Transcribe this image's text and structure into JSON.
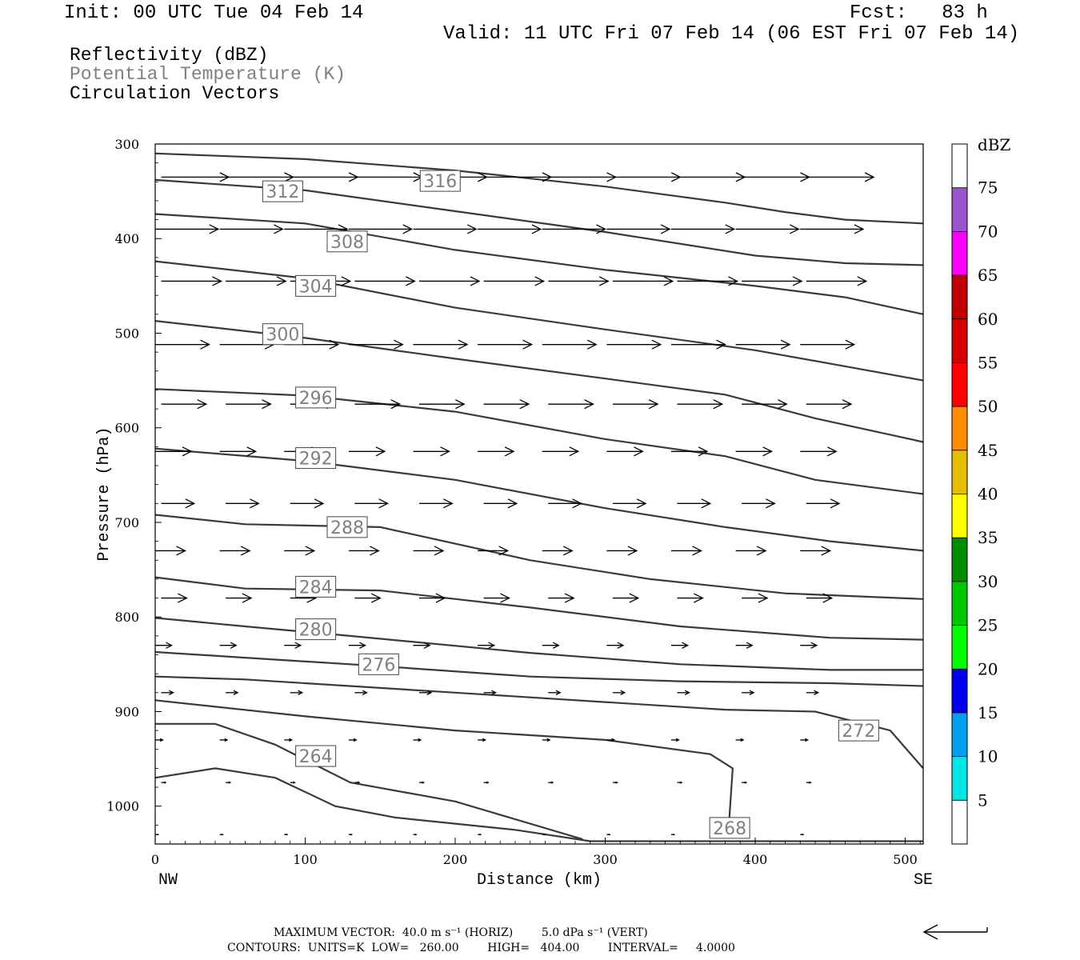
{
  "header": {
    "init": "Init: 00 UTC Tue 04 Feb 14",
    "fcst": "Fcst:   83 h",
    "valid": "Valid: 11 UTC Fri 07 Feb 14 (06 EST Fri 07 Feb 14)"
  },
  "fields": {
    "reflectivity": "Reflectivity (dBZ)",
    "theta": "Potential Temperature (K)",
    "vectors": "Circulation Vectors"
  },
  "footer": {
    "max_vector": "MAXIMUM VECTOR:  40.0 m s⁻¹ (HORIZ)        5.0 dPa s⁻¹ (VERT)",
    "contours": "CONTOURS:  UNITS=K  LOW=   260.00        HIGH=   404.00        INTERVAL=     4.0000"
  },
  "colors": {
    "contour": "#3a3a3a",
    "theta_label_text": "#808080"
  },
  "colorbar": {
    "unit": "dBZ",
    "labels": [
      "5",
      "10",
      "15",
      "20",
      "25",
      "30",
      "35",
      "40",
      "45",
      "50",
      "55",
      "60",
      "65",
      "70",
      "75"
    ],
    "colors": [
      "#00e5e5",
      "#00a0f0",
      "#0000f0",
      "#00ff00",
      "#00c800",
      "#008c00",
      "#ffff00",
      "#e6be00",
      "#ff8c00",
      "#ff0000",
      "#d60000",
      "#c00000",
      "#ff00ff",
      "#9955c9",
      "#ffffff"
    ]
  },
  "chart_data": {
    "type": "cross-section",
    "xlabel": "Distance (km)",
    "ylabel": "Pressure (hPa)",
    "xlim": [
      0,
      512
    ],
    "ylim": [
      300,
      1040
    ],
    "y_scale": "linear, inverted",
    "x_ticks": [
      "0",
      "100",
      "200",
      "300",
      "400",
      "500"
    ],
    "y_ticks": [
      "300",
      "400",
      "500",
      "600",
      "700",
      "800",
      "900",
      "1000"
    ],
    "x_ends": {
      "left": "NW",
      "right": "SE"
    },
    "theta_contours": [
      {
        "value": 316,
        "label_at": [
          190,
          339
        ],
        "points": [
          [
            0,
            310
          ],
          [
            100,
            316
          ],
          [
            200,
            328
          ],
          [
            300,
            345
          ],
          [
            380,
            362
          ],
          [
            420,
            372
          ],
          [
            460,
            380
          ],
          [
            512,
            384
          ]
        ]
      },
      {
        "value": 312,
        "label_at": [
          85,
          350
        ],
        "points": [
          [
            0,
            338
          ],
          [
            100,
            349
          ],
          [
            200,
            371
          ],
          [
            300,
            393
          ],
          [
            400,
            418
          ],
          [
            460,
            426
          ],
          [
            512,
            428
          ]
        ]
      },
      {
        "value": 308,
        "label_at": [
          128,
          403
        ],
        "points": [
          [
            0,
            374
          ],
          [
            100,
            384
          ],
          [
            200,
            412
          ],
          [
            300,
            433
          ],
          [
            400,
            450
          ],
          [
            460,
            462
          ],
          [
            512,
            480
          ]
        ]
      },
      {
        "value": 304,
        "label_at": [
          107,
          450
        ],
        "points": [
          [
            0,
            424
          ],
          [
            100,
            442
          ],
          [
            200,
            473
          ],
          [
            300,
            496
          ],
          [
            400,
            518
          ],
          [
            460,
            535
          ],
          [
            512,
            550
          ]
        ]
      },
      {
        "value": 300,
        "label_at": [
          85,
          501
        ],
        "points": [
          [
            0,
            487
          ],
          [
            100,
            505
          ],
          [
            200,
            527
          ],
          [
            300,
            548
          ],
          [
            380,
            565
          ],
          [
            440,
            590
          ],
          [
            512,
            615
          ]
        ]
      },
      {
        "value": 296,
        "label_at": [
          107,
          568
        ],
        "points": [
          [
            0,
            559
          ],
          [
            100,
            566
          ],
          [
            200,
            583
          ],
          [
            300,
            612
          ],
          [
            380,
            630
          ],
          [
            440,
            655
          ],
          [
            512,
            670
          ]
        ]
      },
      {
        "value": 292,
        "label_at": [
          107,
          632
        ],
        "points": [
          [
            0,
            622
          ],
          [
            100,
            635
          ],
          [
            200,
            655
          ],
          [
            300,
            685
          ],
          [
            380,
            705
          ],
          [
            450,
            720
          ],
          [
            512,
            730
          ]
        ]
      },
      {
        "value": 288,
        "label_at": [
          128,
          705
        ],
        "points": [
          [
            0,
            692
          ],
          [
            60,
            702
          ],
          [
            150,
            705
          ],
          [
            250,
            740
          ],
          [
            330,
            760
          ],
          [
            420,
            775
          ],
          [
            512,
            781
          ]
        ]
      },
      {
        "value": 284,
        "label_at": [
          107,
          768
        ],
        "points": [
          [
            0,
            758
          ],
          [
            60,
            770
          ],
          [
            150,
            772
          ],
          [
            250,
            790
          ],
          [
            350,
            810
          ],
          [
            450,
            822
          ],
          [
            512,
            824
          ]
        ]
      },
      {
        "value": 280,
        "label_at": [
          107,
          813
        ],
        "points": [
          [
            0,
            801
          ],
          [
            60,
            810
          ],
          [
            130,
            820
          ],
          [
            250,
            838
          ],
          [
            350,
            850
          ],
          [
            450,
            856
          ],
          [
            512,
            856
          ]
        ]
      },
      {
        "value": 276,
        "label_at": [
          149,
          850
        ],
        "points": [
          [
            0,
            837
          ],
          [
            60,
            843
          ],
          [
            150,
            852
          ],
          [
            250,
            863
          ],
          [
            350,
            868
          ],
          [
            450,
            870
          ],
          [
            512,
            873
          ]
        ]
      },
      {
        "value": 272,
        "label_at": [
          469,
          920
        ],
        "points": [
          [
            0,
            863
          ],
          [
            60,
            866
          ],
          [
            200,
            880
          ],
          [
            300,
            890
          ],
          [
            380,
            898
          ],
          [
            440,
            900
          ],
          [
            490,
            920
          ],
          [
            512,
            960
          ]
        ]
      },
      {
        "value": 268,
        "label_at": [
          383,
          1023
        ],
        "points": [
          [
            0,
            888
          ],
          [
            100,
            905
          ],
          [
            200,
            920
          ],
          [
            300,
            930
          ],
          [
            370,
            945
          ],
          [
            385,
            960
          ],
          [
            382,
            1030
          ]
        ]
      },
      {
        "value": 264,
        "label_at": [
          107,
          947
        ],
        "points": [
          [
            0,
            913
          ],
          [
            40,
            913
          ],
          [
            80,
            935
          ],
          [
            130,
            975
          ],
          [
            200,
            995
          ],
          [
            285,
            1035
          ]
        ]
      },
      {
        "value": 260,
        "label_at": null,
        "points": [
          [
            0,
            970
          ],
          [
            40,
            960
          ],
          [
            80,
            970
          ],
          [
            120,
            1000
          ],
          [
            160,
            1012
          ],
          [
            240,
            1025
          ],
          [
            290,
            1037
          ],
          [
            512,
            1037
          ]
        ]
      }
    ],
    "circulation_vectors": {
      "note": "horizontal component dominates; vectors point left-to-right (NW to SE)",
      "levels_hPa": [
        335,
        390,
        445,
        512,
        575,
        625,
        680,
        730,
        780,
        830,
        880,
        930,
        975,
        1030
      ],
      "lengths_km": [
        45,
        42,
        40,
        36,
        30,
        24,
        22,
        20,
        17,
        11,
        8,
        5,
        3,
        2
      ]
    }
  }
}
